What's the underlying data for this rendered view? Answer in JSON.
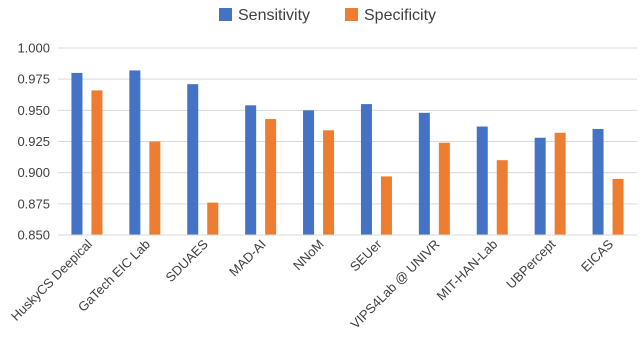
{
  "chart_data": {
    "type": "bar",
    "categories": [
      "HuskyCS Deepical",
      "GaTech EIC Lab",
      "SDUAES",
      "MAD-AI",
      "NNoM",
      "SEUer",
      "VIPS4Lab @ UNIVR",
      "MIT-HAN-Lab",
      "UBPercept",
      "EICAS"
    ],
    "series": [
      {
        "name": "Sensitivity",
        "color": "#4472C4",
        "values": [
          0.98,
          0.982,
          0.971,
          0.954,
          0.95,
          0.955,
          0.948,
          0.937,
          0.928,
          0.935
        ]
      },
      {
        "name": "Specificity",
        "color": "#ED7D31",
        "values": [
          0.966,
          0.925,
          0.876,
          0.943,
          0.934,
          0.897,
          0.924,
          0.91,
          0.932,
          0.895
        ]
      }
    ],
    "ylim": [
      0.85,
      1.0
    ],
    "yticks": [
      "0.850",
      "0.875",
      "0.900",
      "0.925",
      "0.950",
      "0.975",
      "1.000"
    ],
    "grid": true,
    "legend_position": "top-center",
    "title": "",
    "xlabel": "",
    "ylabel": ""
  }
}
